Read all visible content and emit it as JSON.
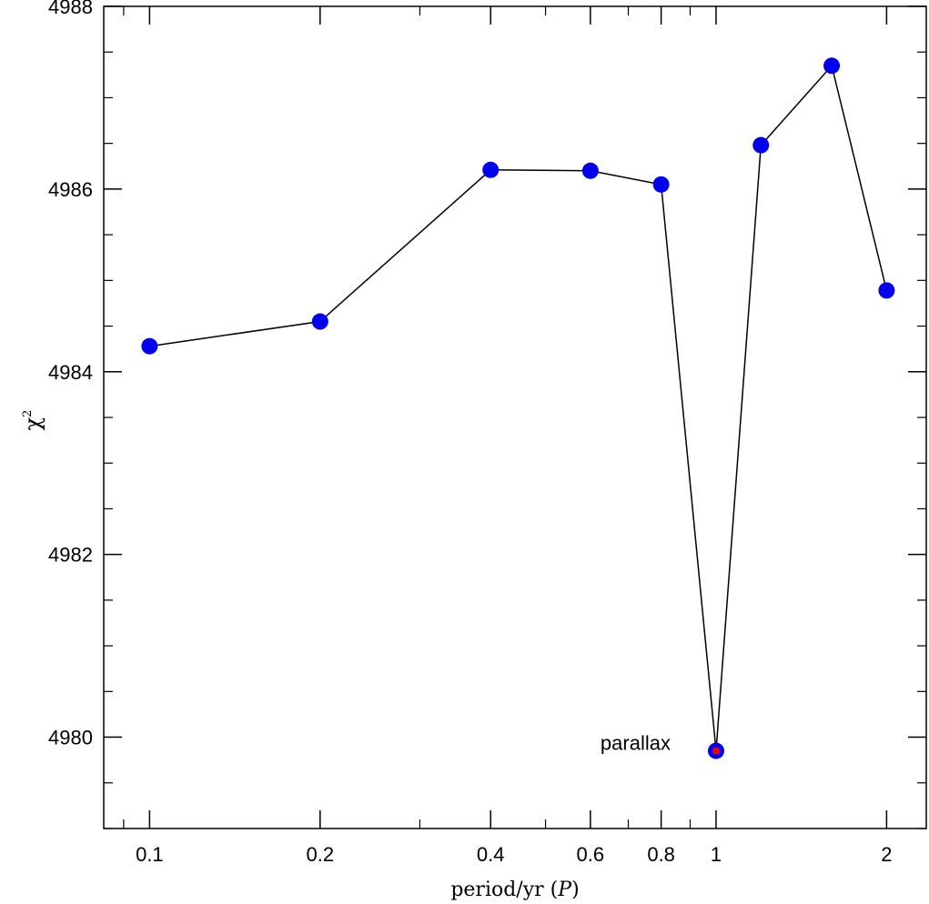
{
  "chart_data": {
    "type": "scatter",
    "x_scale": "log",
    "x": [
      0.1,
      0.2,
      0.4,
      0.6,
      0.8,
      1.0,
      1.2,
      1.6,
      2.0
    ],
    "y": [
      4984.28,
      4984.55,
      4986.21,
      4986.2,
      4986.05,
      4979.85,
      4986.48,
      4987.35,
      4984.89
    ],
    "xlim": [
      0.083,
      2.35
    ],
    "ylim": [
      4979.0,
      4988.0
    ],
    "x_ticks": [
      0.1,
      0.2,
      0.4,
      0.6,
      0.8,
      1,
      2
    ],
    "x_tick_labels": [
      "0.1",
      "0.2",
      "0.4",
      "0.6",
      "0.8",
      "1",
      "2"
    ],
    "y_ticks": [
      4980,
      4982,
      4984,
      4986,
      4988
    ],
    "y_tick_labels": [
      "4980",
      "4982",
      "4984",
      "4986",
      "4988"
    ],
    "xlabel_text": "period/yr",
    "xlabel_symbol": "P",
    "ylabel": "χ",
    "ylabel_sup": "2",
    "annotation": {
      "text": "parallax",
      "x": 1.0,
      "y": 4979.85
    },
    "highlight_x": 1.0,
    "colors": {
      "marker": "#0000ee",
      "highlight": "#ee0000",
      "line": "#000000"
    },
    "grid": false
  }
}
